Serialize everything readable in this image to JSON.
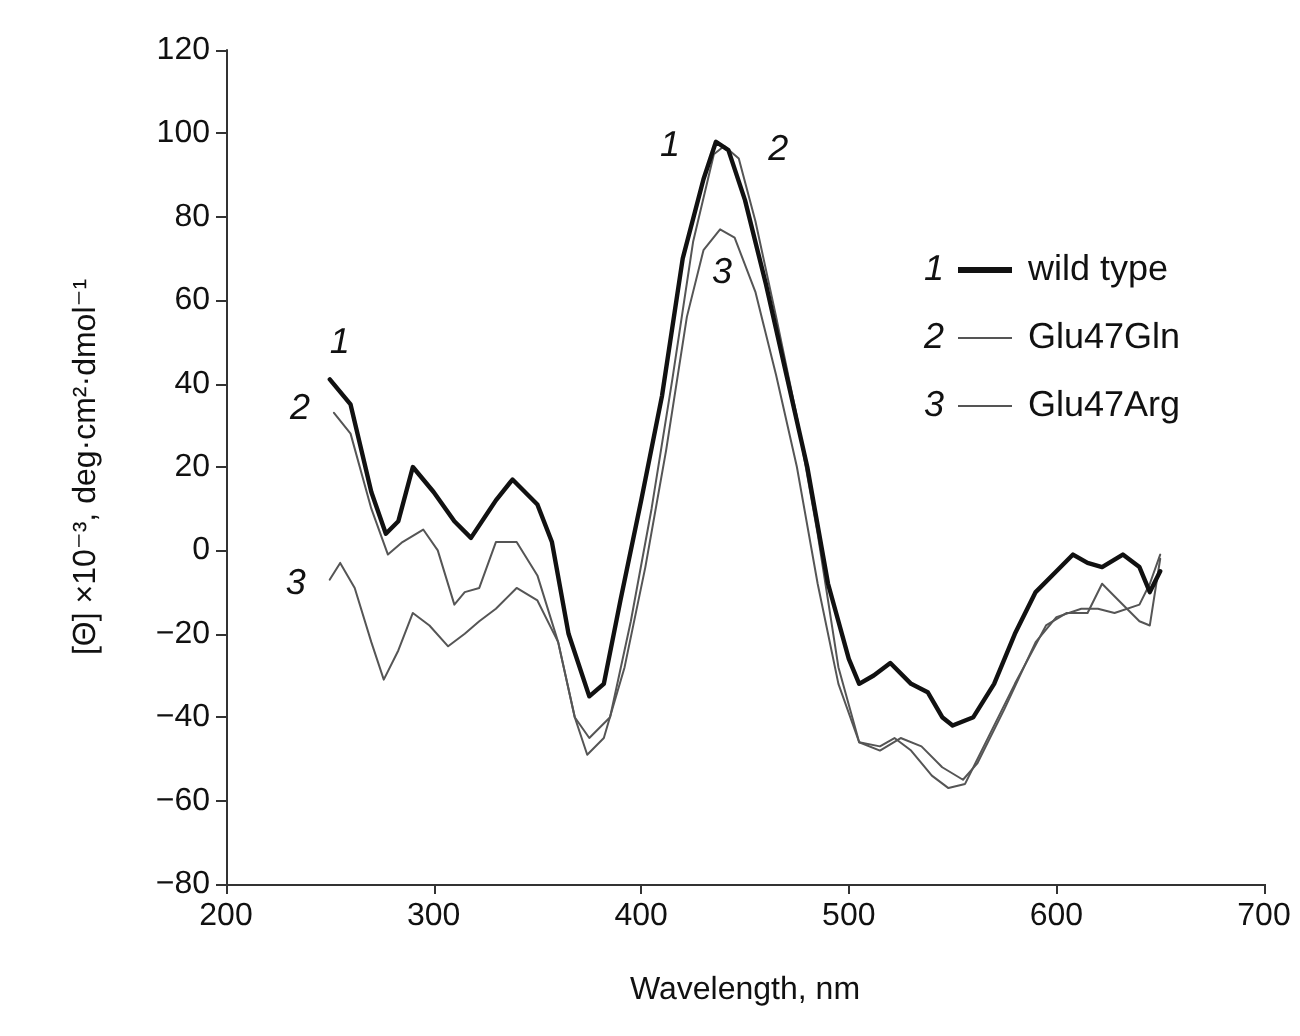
{
  "chart_data": {
    "type": "line",
    "xlabel": "Wavelength, nm",
    "ylabel": "[Θ] ×10⁻³, deg·cm²·dmol⁻¹",
    "xlim": [
      200,
      700
    ],
    "xticks": [
      200,
      300,
      400,
      500,
      600,
      700
    ],
    "ylim": [
      -80,
      120
    ],
    "yticks": [
      {
        "value": -80,
        "label": "−80"
      },
      {
        "value": -60,
        "label": "−60"
      },
      {
        "value": -40,
        "label": "−40"
      },
      {
        "value": -20,
        "label": "−20"
      },
      0,
      20,
      40,
      60,
      80,
      100,
      120
    ],
    "grid": false,
    "legend": "top right",
    "marker": "none",
    "line_style": "solid",
    "annotations": [
      "1",
      "2",
      "3",
      "1",
      "2",
      "3",
      "1",
      "2",
      "3"
    ],
    "series": [
      {
        "name": "wild type",
        "color": "#111111",
        "x": [
          250,
          260,
          270,
          277,
          283,
          290,
          300,
          310,
          318,
          330,
          338,
          350,
          357,
          365,
          375,
          382,
          390,
          400,
          410,
          420,
          430,
          436,
          442,
          450,
          460,
          470,
          480,
          490,
          500,
          505,
          512,
          520,
          530,
          538,
          545,
          550,
          560,
          570,
          580,
          590,
          600,
          608,
          615,
          622,
          632,
          640,
          645,
          650
        ],
        "values": [
          41,
          35,
          14,
          4,
          7,
          20,
          14,
          7,
          3,
          12,
          17,
          11,
          2,
          -20,
          -35,
          -32,
          -12,
          12,
          37,
          70,
          89,
          98,
          96,
          84,
          64,
          42,
          20,
          -8,
          -26,
          -32,
          -30,
          -27,
          -32,
          -34,
          -40,
          -42,
          -40,
          -32,
          -20,
          -10,
          -5,
          -1,
          -3,
          -4,
          -1,
          -4,
          -10,
          -5
        ]
      },
      {
        "name": "Glu47Gln",
        "color": "#555555",
        "x": [
          252,
          260,
          270,
          278,
          285,
          295,
          302,
          310,
          315,
          322,
          330,
          340,
          350,
          360,
          368,
          375,
          385,
          395,
          405,
          415,
          425,
          435,
          440,
          447,
          455,
          465,
          475,
          485,
          495,
          505,
          515,
          525,
          535,
          545,
          555,
          562,
          575,
          590,
          600,
          612,
          620,
          628,
          640,
          645,
          650
        ],
        "values": [
          33,
          28,
          10,
          -1,
          2,
          5,
          0,
          -13,
          -10,
          -9,
          2,
          2,
          -6,
          -22,
          -40,
          -45,
          -40,
          -17,
          10,
          41,
          74,
          95,
          97,
          94,
          79,
          56,
          32,
          4,
          -28,
          -46,
          -48,
          -45,
          -47,
          -52,
          -55,
          -51,
          -38,
          -22,
          -16,
          -14,
          -14,
          -15,
          -13,
          -8,
          -1
        ]
      },
      {
        "name": "Glu47Arg",
        "color": "#555555",
        "x": [
          250,
          255,
          262,
          270,
          276,
          283,
          290,
          298,
          307,
          315,
          322,
          330,
          340,
          350,
          360,
          368,
          374,
          382,
          392,
          402,
          412,
          422,
          430,
          438,
          445,
          455,
          465,
          475,
          485,
          495,
          505,
          515,
          522,
          530,
          540,
          548,
          556,
          565,
          580,
          595,
          605,
          615,
          622,
          630,
          640,
          645,
          650
        ],
        "values": [
          -7,
          -3,
          -9,
          -22,
          -31,
          -24,
          -15,
          -18,
          -23,
          -20,
          -17,
          -14,
          -9,
          -12,
          -22,
          -40,
          -49,
          -45,
          -28,
          -4,
          24,
          56,
          72,
          77,
          75,
          62,
          42,
          20,
          -8,
          -32,
          -46,
          -47,
          -45,
          -48,
          -54,
          -57,
          -56,
          -47,
          -32,
          -18,
          -15,
          -15,
          -8,
          -12,
          -17,
          -18,
          -2
        ]
      }
    ]
  }
}
